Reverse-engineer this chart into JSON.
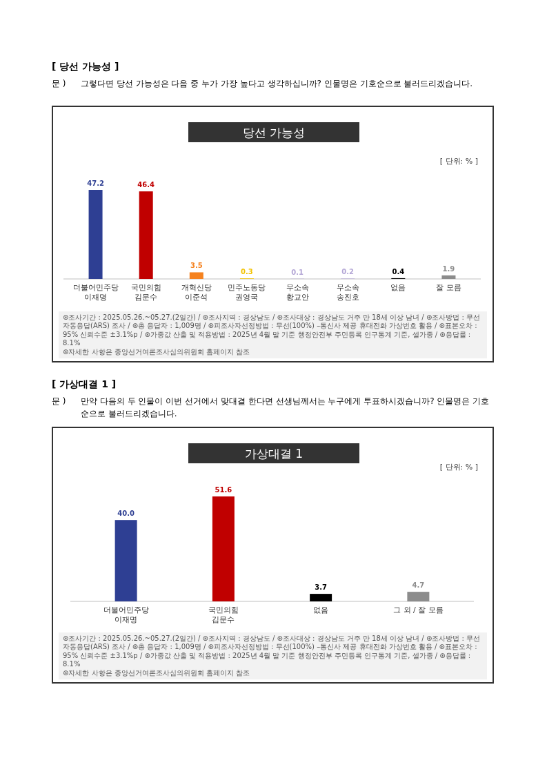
{
  "chart_data": [
    {
      "type": "bar",
      "title": "당선 가능성",
      "categories": [
        "더불어민주당\n이재명",
        "국민의힘\n김문수",
        "개혁신당\n이준석",
        "민주노동당\n권영국",
        "무소속\n황교안",
        "무소속\n송진호",
        "없음",
        "잘 모름"
      ],
      "values": [
        47.2,
        46.4,
        3.5,
        0.3,
        0.1,
        0.2,
        0.4,
        1.9
      ],
      "colors": [
        "#2e3f93",
        "#c00000",
        "#f5821f",
        "#f2c200",
        "#b4a7d6",
        "#b4a7d6",
        "#000000",
        "#8c8c8c"
      ],
      "data_labels": true,
      "annotations": [
        "[ 당선 가능성 ]",
        "문 )",
        "그렇다면 당선 가능성은 다음 중 누가 가장 높다고 생각하십니까? 인물명은 기호순으로 불러드리겠습니다.",
        "[ 단위: % ]",
        "⊛조사기간 : 2025.05.26.~05.27.(2일간) / ⊛조사지역 : 경상남도 / ⊛조사대상 : 경상남도 거주 만 18세 이상 남녀 / ⊛조사방법 : 무선 자동응답(ARS) 조사 / ⊛총 응답자 : 1,009명 / ⊛피조사자선정방법 : 무선(100%) –통신사 제공 휴대전화 가상번호 활용 / ⊛표본오차 : 95% 신뢰수준 ±3.1%p / ⊛가중값 산출 및 적용방법 : 2025년 4월 말 기준 행정안전부 주민등록 인구통계 기준, 셀가중 / ⊛응답률 : 8.1%",
        "⊛자세한 사항은 중앙선거여론조사심의위원회 홈페이지 참조"
      ]
    },
    {
      "type": "bar",
      "title": "가상대결 1",
      "categories": [
        "더불어민주당\n이재명",
        "국민의힘\n김문수",
        "없음",
        "그 외 / 잘 모름"
      ],
      "values": [
        40.0,
        51.6,
        3.7,
        4.7
      ],
      "colors": [
        "#2e3f93",
        "#c00000",
        "#000000",
        "#8c8c8c"
      ],
      "value_labels": [
        "40.0",
        "51.6",
        "3.7",
        "4.7"
      ],
      "annotations": [
        "[ 가상대결 1 ]",
        "문 )",
        "만약 다음의 두 인물이 이번 선거에서 맞대결 한다면 선생님께서는 누구에게 투표하시겠습니까? 인물명은 기호순으로 불러드리겠습니다.",
        "[ 단위: % ]",
        "⊛조사기간 : 2025.05.26.~05.27.(2일간) / ⊛조사지역 : 경상남도 / ⊛조사대상 : 경상남도 거주 만 18세 이상 남녀 / ⊛조사방법 : 무선 자동응답(ARS) 조사 / ⊛총 응답자 : 1,009명 / ⊛피조사자선정방법 : 무선(100%) –통신사 제공 휴대전화 가상번호 활용 / ⊛표본오차 : 95% 신뢰수준 ±3.1%p / ⊛가중값 산출 및 적용방법 : 2025년 4월 말 기준 행정안전부 주민등록 인구통계 기준, 셀가중 / ⊛응답률 : 8.1%",
        "⊛자세한 사항은 중앙선거여론조사심의위원회 홈페이지 참조"
      ]
    }
  ]
}
